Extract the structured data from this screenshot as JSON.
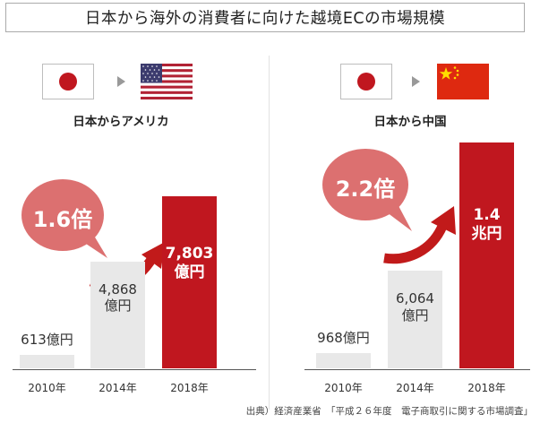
{
  "title": "日本から海外の消費者に向けた越境ECの市場規模",
  "source": "出典）経済産業省　「平成２６年度　電子商取引に関する市場調査」",
  "colors": {
    "accent_red": "#c0171f",
    "bubble": "#dc7070",
    "bar_gray": "#e8e8e8",
    "arrow_red": "#c11a1a"
  },
  "chart_data": [
    {
      "type": "bar",
      "title": "日本からアメリカ",
      "categories": [
        "2010年",
        "2014年",
        "2018年"
      ],
      "values": [
        613,
        4868,
        7803
      ],
      "value_labels": [
        "613億円",
        "4,868\n億円",
        "7,803\n億円"
      ],
      "unit": "億円",
      "growth_label": "1.6倍",
      "ylim": [
        0,
        11000
      ]
    },
    {
      "type": "bar",
      "title": "日本から中国",
      "categories": [
        "2010年",
        "2014年",
        "2018年"
      ],
      "values": [
        968,
        6064,
        14000
      ],
      "value_labels": [
        "968億円",
        "6,064\n億円",
        "1.4\n兆円"
      ],
      "unit": "億円",
      "growth_label": "2.2倍",
      "ylim": [
        0,
        14800
      ]
    }
  ]
}
